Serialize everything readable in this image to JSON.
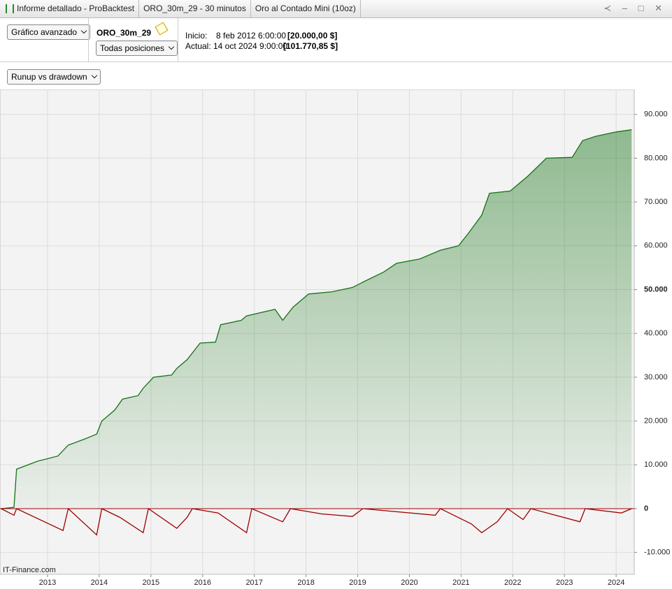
{
  "window": {
    "tabs": [
      "Informe detallado - ProBacktest",
      "ORO_30m_29 - 30 minutos",
      "Oro al Contado Mini (10oz)"
    ]
  },
  "toolbar": {
    "chart_mode": "Gráfico avanzado",
    "system": "ORO_30m_29",
    "positions": "Todas posiciones",
    "start_label": "Inicio:",
    "start_date": "8 feb 2012 6:00:00",
    "start_capital": "[20.000,00 $]",
    "current_label": "Actual:",
    "current_date": "14 oct 2024 9:00:00",
    "current_capital": "[101.770,85 $]",
    "view": "Runup vs drawdown"
  },
  "chart_data": {
    "type": "line",
    "watermark": "IT-Finance.com",
    "grid": true,
    "y_axis_side": "right",
    "xlim": [
      2012.08,
      2024.35
    ],
    "xticks": [
      2013,
      2014,
      2015,
      2016,
      2017,
      2018,
      2019,
      2020,
      2021,
      2022,
      2023,
      2024
    ],
    "ylim": [
      -15000,
      95700
    ],
    "yticks": [
      {
        "value": -10000,
        "label": "-10.000"
      },
      0,
      {
        "value": 10000,
        "label": "10.000"
      },
      {
        "value": 20000,
        "label": "20.000"
      },
      {
        "value": 30000,
        "label": "30.000"
      },
      {
        "value": 40000,
        "label": "40.000"
      },
      {
        "value": 50000,
        "label": "50.000"
      },
      {
        "value": 60000,
        "label": "60.000"
      },
      {
        "value": 70000,
        "label": "70.000"
      },
      {
        "value": 80000,
        "label": "80.000"
      },
      {
        "value": 90000,
        "label": "90.000"
      }
    ],
    "series": [
      {
        "name": "Runup",
        "color": "#157315",
        "area": true,
        "x": [
          2012.1,
          2012.35,
          2012.4,
          2012.8,
          2013.2,
          2013.4,
          2013.7,
          2013.95,
          2014.05,
          2014.3,
          2014.45,
          2014.75,
          2014.85,
          2015.05,
          2015.4,
          2015.5,
          2015.7,
          2015.95,
          2016.25,
          2016.35,
          2016.75,
          2016.85,
          2017.4,
          2017.55,
          2017.75,
          2018.05,
          2018.5,
          2018.9,
          2019.15,
          2019.5,
          2019.75,
          2020.2,
          2020.6,
          2020.95,
          2021.15,
          2021.4,
          2021.55,
          2021.95,
          2022.3,
          2022.65,
          2023.15,
          2023.35,
          2023.6,
          2024.0,
          2024.3
        ],
        "values": [
          0,
          300,
          9000,
          10800,
          12000,
          14500,
          15800,
          17000,
          20000,
          22500,
          25000,
          25800,
          27500,
          30000,
          30500,
          32000,
          34000,
          37800,
          38000,
          42000,
          43000,
          44000,
          45500,
          43000,
          46000,
          49000,
          49500,
          50500,
          52000,
          54000,
          56000,
          57000,
          59000,
          60000,
          63000,
          67000,
          72000,
          72500,
          76000,
          80000,
          80200,
          84000,
          85000,
          86000,
          86500
        ]
      },
      {
        "name": "Drawdown",
        "color": "#a00000",
        "area": false,
        "x": [
          2012.1,
          2012.35,
          2012.4,
          2013.3,
          2013.4,
          2013.95,
          2014.05,
          2014.4,
          2014.85,
          2014.95,
          2015.5,
          2015.7,
          2015.8,
          2016.3,
          2016.85,
          2016.95,
          2017.55,
          2017.7,
          2018.3,
          2018.9,
          2019.1,
          2020.5,
          2020.6,
          2021.2,
          2021.4,
          2021.7,
          2021.9,
          2022.2,
          2022.35,
          2023.3,
          2023.4,
          2024.1,
          2024.3
        ],
        "values": [
          0,
          -1500,
          0,
          -5000,
          0,
          -6000,
          0,
          -2000,
          -5500,
          0,
          -4500,
          -2000,
          0,
          -1000,
          -5500,
          0,
          -3000,
          0,
          -1200,
          -1800,
          0,
          -1500,
          0,
          -3500,
          -5500,
          -3000,
          0,
          -2500,
          0,
          -3000,
          0,
          -1000,
          0
        ]
      }
    ]
  }
}
